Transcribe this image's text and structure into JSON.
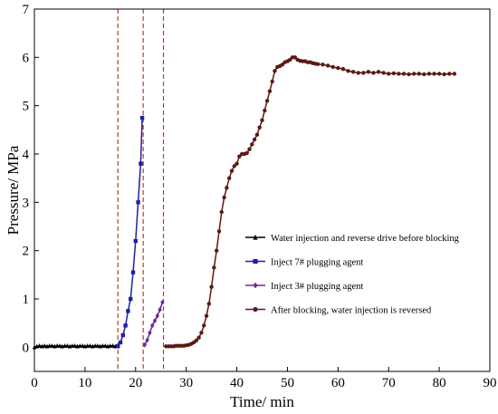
{
  "chart_data": {
    "type": "line",
    "xlabel": "Time/ min",
    "ylabel": "Pressure/ MPa",
    "xlim": [
      0,
      90
    ],
    "ylim": [
      -0.5,
      7
    ],
    "x_ticks": [
      0,
      10,
      20,
      30,
      40,
      50,
      60,
      70,
      80,
      90
    ],
    "y_ticks": [
      0,
      1,
      2,
      3,
      4,
      5,
      6,
      7
    ],
    "grid": false,
    "legend_placement": "right",
    "reference_lines": [
      {
        "x": 16.5,
        "color": "#c0392b",
        "style": "dashed"
      },
      {
        "x": 21.5,
        "color": "#c0392b",
        "style": "dashed"
      },
      {
        "x": 25.5,
        "color": "#c0392b",
        "style": "dashed"
      }
    ],
    "series": [
      {
        "name": "Water injection and reverse drive before blocking",
        "color": "#000000",
        "marker": "triangle",
        "x": [
          0,
          0.5,
          1,
          1.5,
          2,
          2.5,
          3,
          3.5,
          4,
          4.5,
          5,
          5.5,
          6,
          6.5,
          7,
          7.5,
          8,
          8.5,
          9,
          9.5,
          10,
          10.5,
          11,
          11.5,
          12,
          12.5,
          13,
          13.5,
          14,
          14.5,
          15,
          15.5,
          16,
          16.5
        ],
        "y": [
          0,
          0.02,
          0.03,
          0.02,
          0.03,
          0.02,
          0.03,
          0.03,
          0.02,
          0.03,
          0.03,
          0.02,
          0.03,
          0.03,
          0.02,
          0.03,
          0.03,
          0.02,
          0.03,
          0.03,
          0.02,
          0.03,
          0.03,
          0.02,
          0.03,
          0.03,
          0.02,
          0.03,
          0.03,
          0.02,
          0.03,
          0.03,
          0.02,
          0.03
        ]
      },
      {
        "name": "Inject 7# plugging agent",
        "color": "#1f1fa8",
        "marker": "square",
        "x": [
          16.5,
          17,
          17.5,
          18,
          18.5,
          19,
          19.5,
          20,
          20.5,
          21,
          21.3
        ],
        "y": [
          0.02,
          0.1,
          0.25,
          0.45,
          0.75,
          1.0,
          1.55,
          2.2,
          3.0,
          3.8,
          4.75
        ]
      },
      {
        "name": "Inject 3# plugging agent",
        "color": "#6a2c91",
        "marker": "diamond",
        "x": [
          21.8,
          22.3,
          22.8,
          23.3,
          23.8,
          24.3,
          24.8,
          25.3
        ],
        "y": [
          0.05,
          0.15,
          0.3,
          0.45,
          0.55,
          0.65,
          0.78,
          0.93
        ]
      },
      {
        "name": "After blocking, water injection is reversed",
        "color": "#5a1a12",
        "marker": "circle",
        "x": [
          26,
          26.5,
          27,
          27.5,
          28,
          28.5,
          29,
          29.5,
          30,
          30.5,
          31,
          31.5,
          32,
          32.5,
          33,
          33.5,
          34,
          34.5,
          35,
          35.5,
          36,
          36.5,
          37,
          37.5,
          38,
          38.5,
          39,
          39.5,
          40,
          40.5,
          41,
          41.5,
          42,
          42.5,
          43,
          43.5,
          44,
          44.5,
          45,
          45.5,
          46,
          46.5,
          47,
          47.5,
          48,
          48.5,
          49,
          49.5,
          50,
          50.5,
          51,
          51.5,
          52,
          52.5,
          53,
          53.5,
          54,
          54.5,
          55,
          55.5,
          56,
          57,
          58,
          59,
          60,
          61,
          62,
          63,
          64,
          65,
          66,
          67,
          68,
          69,
          70,
          71,
          72,
          73,
          74,
          75,
          76,
          77,
          78,
          79,
          80,
          81,
          82,
          83
        ],
        "y": [
          0.02,
          0.02,
          0.02,
          0.02,
          0.03,
          0.03,
          0.03,
          0.03,
          0.04,
          0.05,
          0.07,
          0.1,
          0.14,
          0.2,
          0.3,
          0.45,
          0.65,
          0.9,
          1.25,
          1.65,
          2.0,
          2.4,
          2.8,
          3.1,
          3.3,
          3.5,
          3.65,
          3.75,
          3.8,
          3.95,
          4.0,
          4.0,
          4.02,
          4.1,
          4.2,
          4.3,
          4.4,
          4.55,
          4.7,
          4.9,
          5.1,
          5.3,
          5.5,
          5.72,
          5.8,
          5.82,
          5.85,
          5.9,
          5.92,
          5.95,
          6.0,
          6.0,
          5.95,
          5.93,
          5.92,
          5.92,
          5.9,
          5.9,
          5.88,
          5.87,
          5.86,
          5.85,
          5.83,
          5.8,
          5.78,
          5.76,
          5.72,
          5.7,
          5.68,
          5.68,
          5.7,
          5.68,
          5.7,
          5.68,
          5.66,
          5.67,
          5.66,
          5.66,
          5.65,
          5.66,
          5.66,
          5.65,
          5.66,
          5.66,
          5.66,
          5.65,
          5.66,
          5.66
        ]
      }
    ]
  }
}
